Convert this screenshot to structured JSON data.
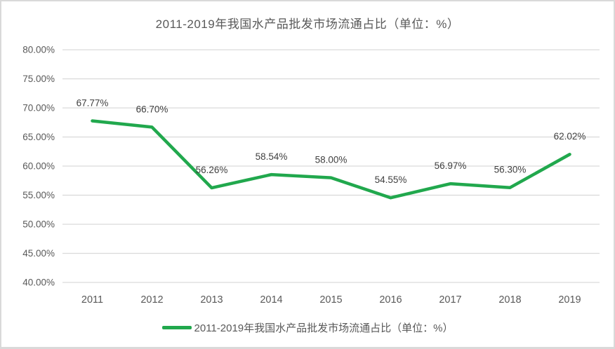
{
  "chart": {
    "title": "2011-2019年我国水产品批发市场流通占比（单位：%）",
    "legend_label": "2011-2019年我国水产品批发市场流通占比（单位：%）"
  },
  "chart_data": {
    "type": "line",
    "title": "2011-2019年我国水产品批发市场流通占比（单位：%）",
    "categories": [
      "2011",
      "2012",
      "2013",
      "2014",
      "2015",
      "2016",
      "2017",
      "2018",
      "2019"
    ],
    "series": [
      {
        "name": "2011-2019年我国水产品批发市场流通占比（单位：%）",
        "values": [
          67.77,
          66.7,
          56.26,
          58.54,
          58.0,
          54.55,
          56.97,
          56.3,
          62.02
        ]
      }
    ],
    "data_labels": [
      "67.77%",
      "66.70%",
      "56.26%",
      "58.54%",
      "58.00%",
      "54.55%",
      "56.97%",
      "56.30%",
      "62.02%"
    ],
    "xlabel": "",
    "ylabel": "",
    "ylim": [
      40,
      80
    ],
    "ytick_step": 5,
    "ytick_labels": [
      "40.00%",
      "45.00%",
      "50.00%",
      "55.00%",
      "60.00%",
      "65.00%",
      "70.00%",
      "75.00%",
      "80.00%"
    ],
    "grid": true,
    "legend_position": "bottom",
    "colors": {
      "line": "#21A84D",
      "gridline": "#D9D9D9",
      "axis_text": "#595959",
      "data_label_text": "#404040",
      "title_text": "#595959",
      "frame_border": "#D9D9D9"
    }
  }
}
